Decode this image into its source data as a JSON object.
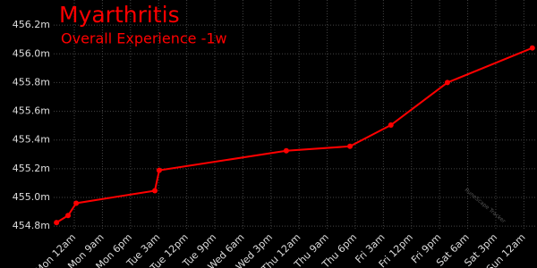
{
  "chart_data": {
    "type": "line",
    "title": "Myarthritis",
    "subtitle": "Overall Experience -1w",
    "watermark": "RuneScape Tracker",
    "xlim": [
      -6.6,
      148.2
    ],
    "xticks": [
      {
        "value": 0,
        "label": "Mon 12am"
      },
      {
        "value": 9,
        "label": "Mon 9am"
      },
      {
        "value": 18,
        "label": "Mon 6pm"
      },
      {
        "value": 27,
        "label": "Tue 3am"
      },
      {
        "value": 36,
        "label": "Tue 12pm"
      },
      {
        "value": 45,
        "label": "Tue 9pm"
      },
      {
        "value": 54,
        "label": "Wed 6am"
      },
      {
        "value": 63,
        "label": "Wed 3pm"
      },
      {
        "value": 72,
        "label": "Thu 12am"
      },
      {
        "value": 81,
        "label": "Thu 9am"
      },
      {
        "value": 90,
        "label": "Thu 6pm"
      },
      {
        "value": 99,
        "label": "Fri 3am"
      },
      {
        "value": 108,
        "label": "Fri 12pm"
      },
      {
        "value": 117,
        "label": "Fri 9pm"
      },
      {
        "value": 126,
        "label": "Sat 6am"
      },
      {
        "value": 135,
        "label": "Sat 3pm"
      },
      {
        "value": 144,
        "label": "Sun 12am"
      }
    ],
    "ylim": [
      454770000,
      456375000
    ],
    "yticks": [
      {
        "value": 454800000,
        "label": "454.8m"
      },
      {
        "value": 455000000,
        "label": "455.0m"
      },
      {
        "value": 455200000,
        "label": "455.2m"
      },
      {
        "value": 455400000,
        "label": "455.4m"
      },
      {
        "value": 455600000,
        "label": "455.6m"
      },
      {
        "value": 455800000,
        "label": "455.8m"
      },
      {
        "value": 456000000,
        "label": "456.0m"
      },
      {
        "value": 456200000,
        "label": "456.2m"
      }
    ],
    "grid": true,
    "series": [
      {
        "color": "#ff0000",
        "x": [
          -5.7,
          -2.0,
          0.6,
          25.8,
          27.2,
          67.9,
          88.3,
          101.4,
          119.5,
          146.7
        ],
        "values": [
          454825000,
          454874000,
          454960000,
          455047000,
          455189000,
          455325000,
          455356000,
          455504000,
          455800000,
          456041000
        ]
      }
    ]
  }
}
